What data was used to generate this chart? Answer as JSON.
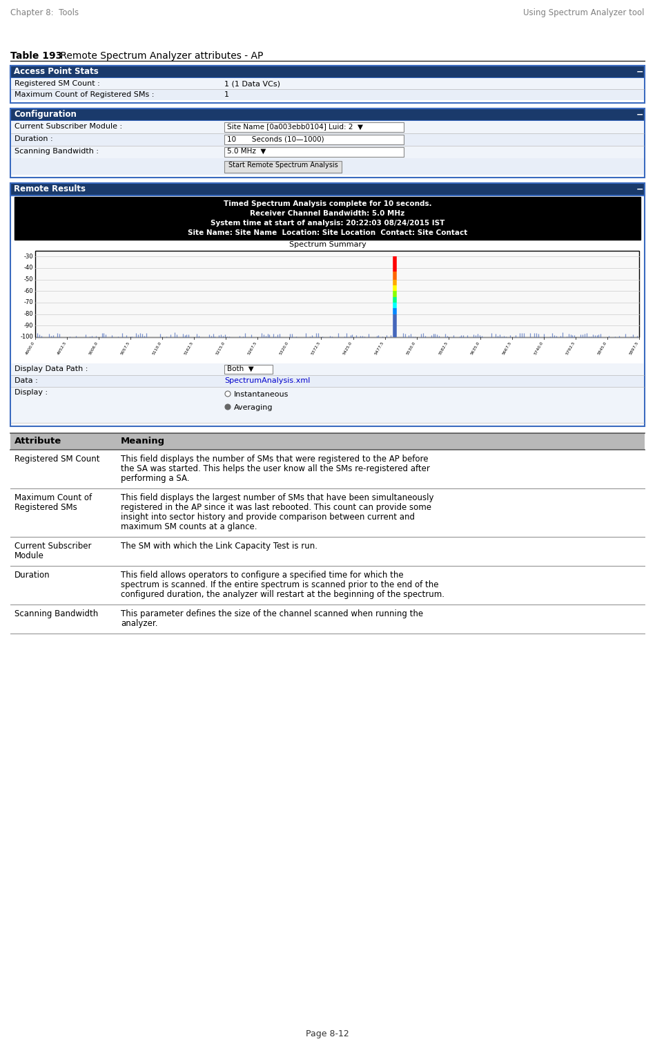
{
  "header_left": "Chapter 8:  Tools",
  "header_right": "Using Spectrum Analyzer tool",
  "table_title_bold": "Table 193",
  "table_title_normal": " Remote Spectrum Analyzer attributes - AP",
  "panel1_title": "Access Point Stats",
  "panel1_rows": [
    [
      "Registered SM Count :",
      "1 (1 Data VCs)"
    ],
    [
      "Maximum Count of Registered SMs :",
      "1"
    ]
  ],
  "panel2_title": "Configuration",
  "panel2_rows": [
    [
      "Current Subscriber Module :",
      "Site Name [0a003ebb0104] Luid: 2  ▼"
    ],
    [
      "Duration :",
      "10       Seconds (10—1000)"
    ],
    [
      "Scanning Bandwidth :",
      "5.0 MHz  ▼"
    ]
  ],
  "panel2_button": "Start Remote Spectrum Analysis",
  "panel3_title": "Remote Results",
  "spectrum_text_lines": [
    "Timed Spectrum Analysis complete for 10 seconds.",
    "Receiver Channel Bandwidth: 5.0 MHz",
    "System time at start of analysis: 20:22:03 08/24/2015 IST",
    "Site Name: Site Name  Location: Site Location  Contact: Site Contact"
  ],
  "spectrum_subtitle": "Spectrum Summary",
  "display_rows": [
    [
      "Display Data Path :",
      "Both  ▼"
    ],
    [
      "Data :",
      "SpectrumAnalysis.xml"
    ],
    [
      "Display :",
      ""
    ]
  ],
  "display_radio": [
    "Instantaneous",
    "Averaging"
  ],
  "table_header": [
    "Attribute",
    "Meaning"
  ],
  "table_rows": [
    [
      "Registered SM Count",
      "This field displays the number of SMs that were registered to the AP before\nthe SA was started. This helps the user know all the SMs re-registered after\nperforming a SA."
    ],
    [
      "Maximum Count of\nRegistered SMs",
      "This field displays the largest number of SMs that have been simultaneously\nregistered in the AP since it was last rebooted. This count can provide some\ninsight into sector history and provide comparison between current and\nmaximum SM counts at a glance."
    ],
    [
      "Current Subscriber\nModule",
      "The SM with which the Link Capacity Test is run."
    ],
    [
      "Duration",
      "This field allows operators to configure a specified time for which the\nspectrum is scanned. If the entire spectrum is scanned prior to the end of the\nconfigured duration, the analyzer will restart at the beginning of the spectrum."
    ],
    [
      "Scanning Bandwidth",
      "This parameter defines the size of the channel scanned when running the\nanalyzer."
    ]
  ],
  "footer": "Page 8-12",
  "header_color": "#808080",
  "panel_header_bg": "#1a3a6b",
  "panel_header_text": "#ffffff",
  "panel_bg": "#ffffff",
  "panel_border": "#3a6abf",
  "table_header_bg": "#b8b8b8",
  "row_sep_color": "#cccccc",
  "body_text_color": "#000000",
  "link_color": "#0000cc"
}
